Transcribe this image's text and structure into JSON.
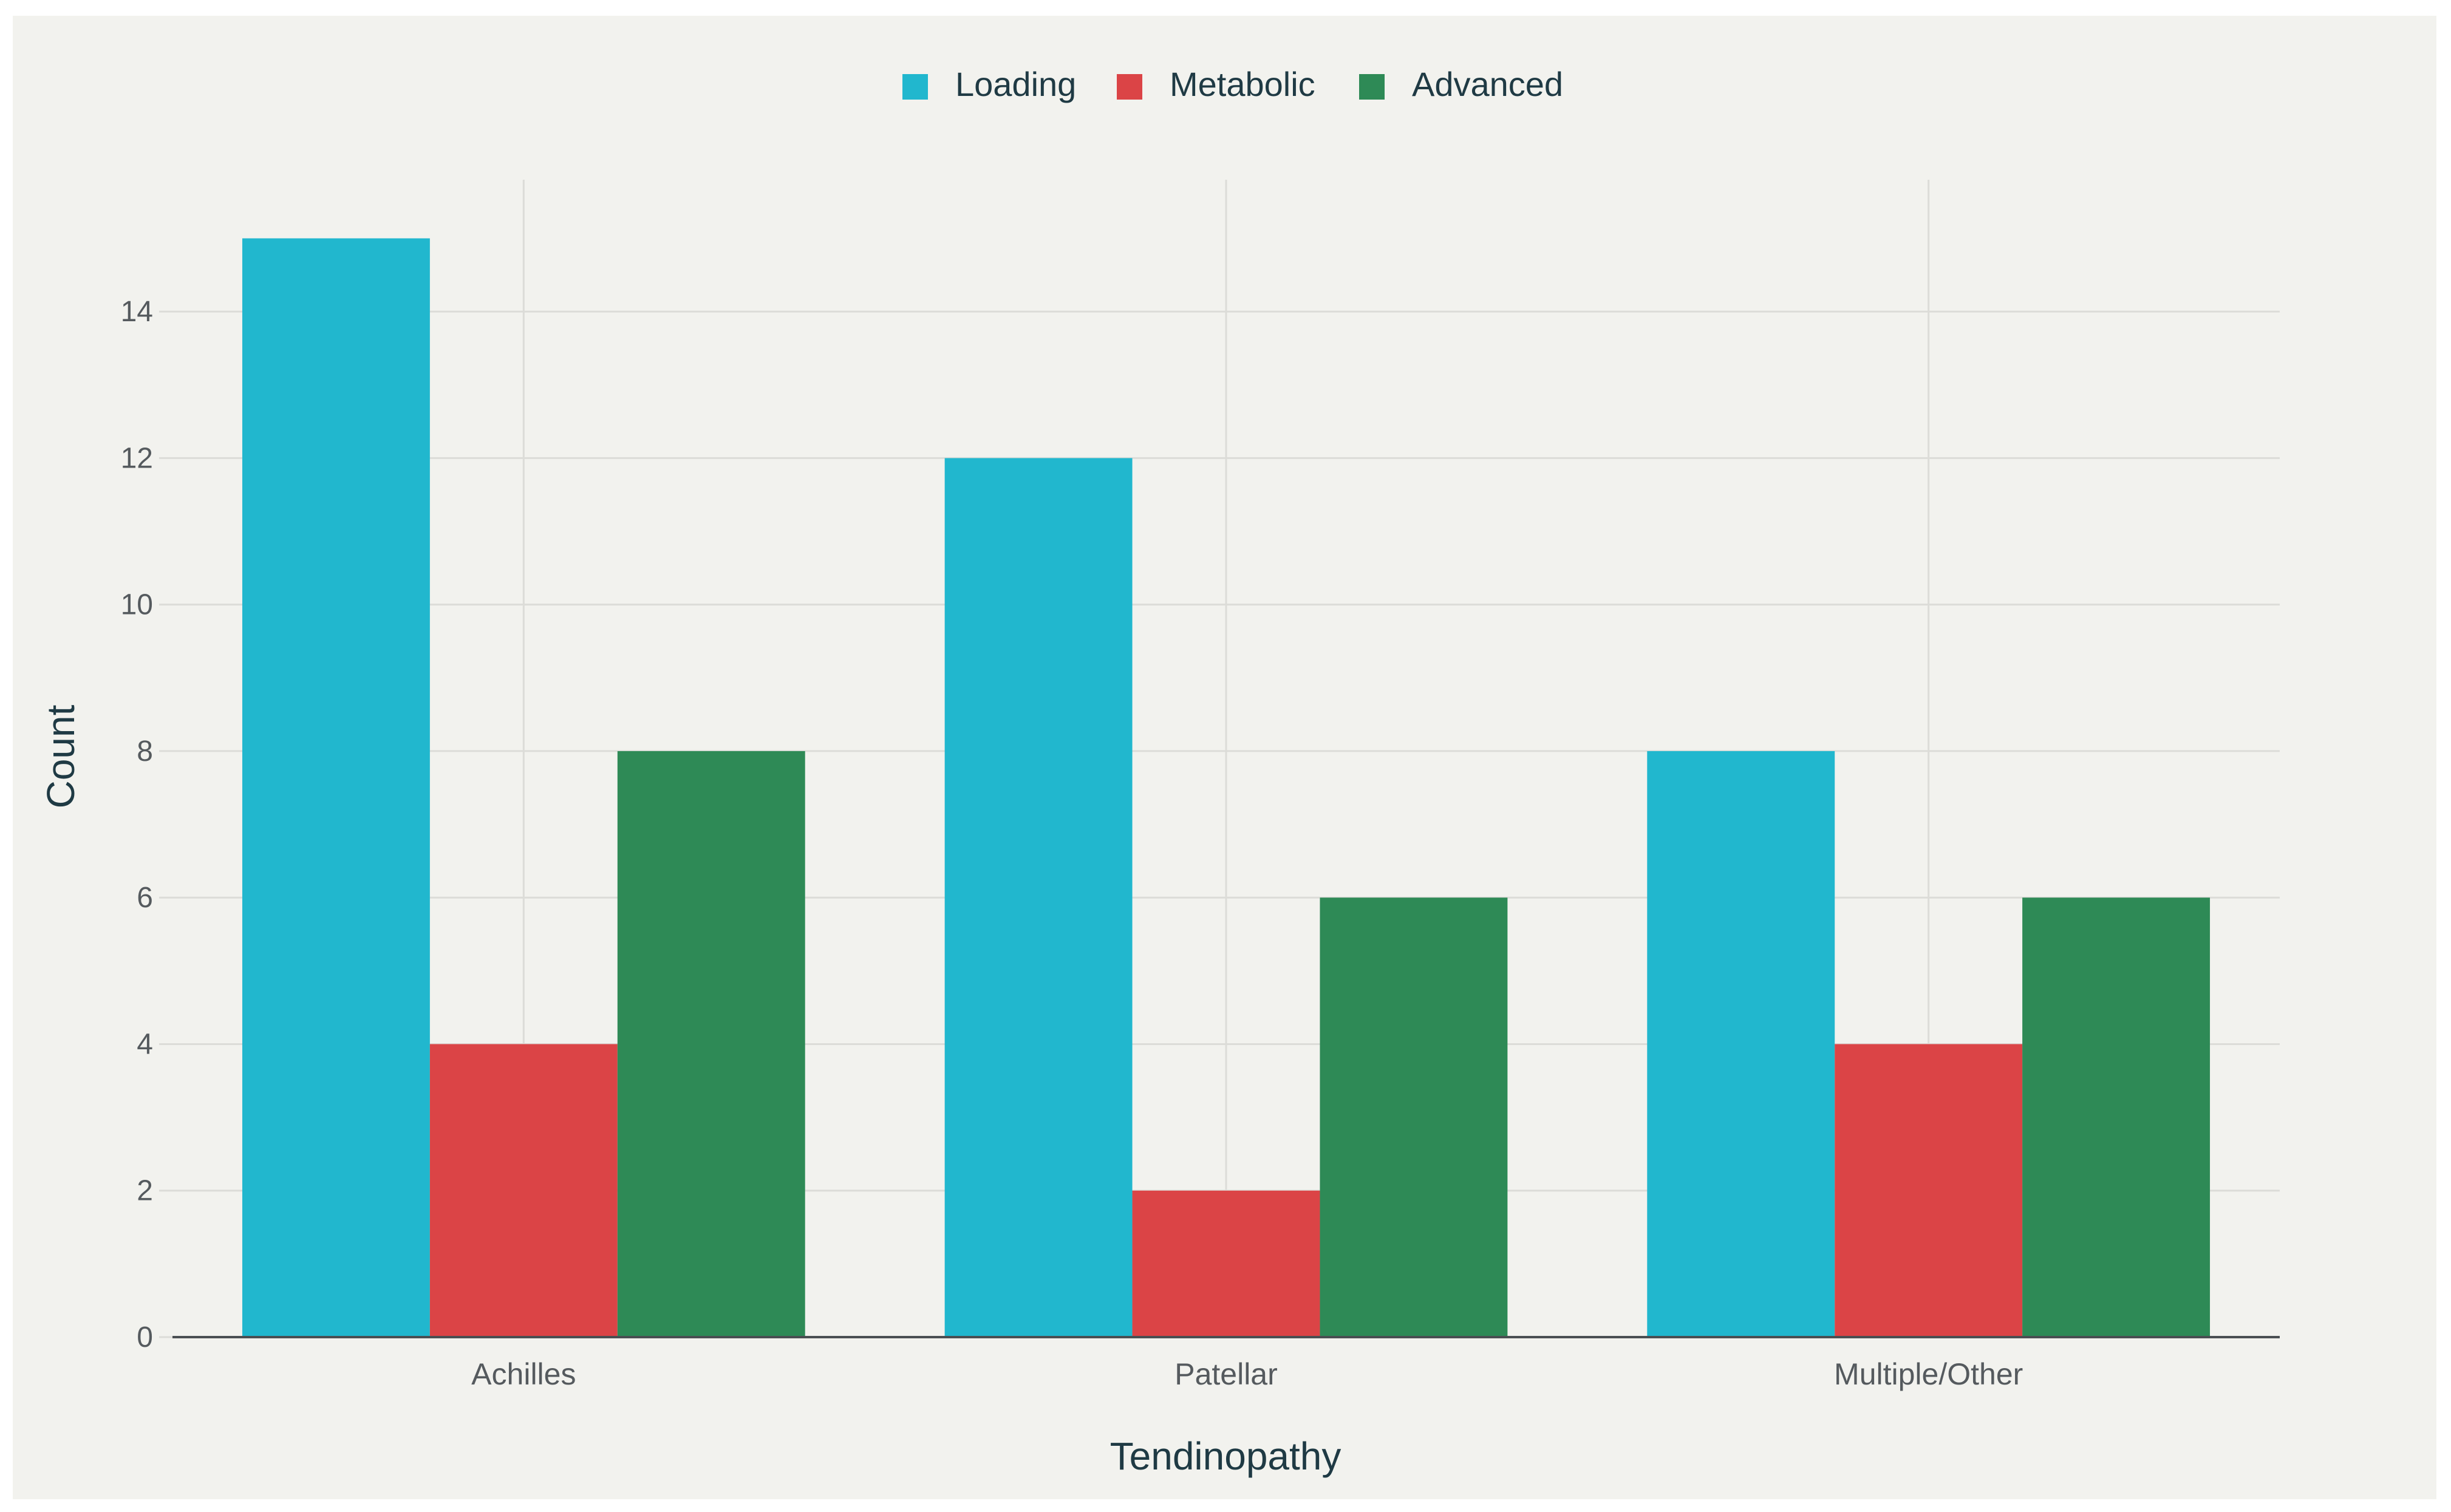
{
  "chart_data": {
    "type": "bar",
    "categories": [
      "Achilles",
      "Patellar",
      "Multiple/Other"
    ],
    "series": [
      {
        "name": "Loading",
        "color": "#21b7ce",
        "values": [
          15,
          12,
          8
        ]
      },
      {
        "name": "Metabolic",
        "color": "#db4446",
        "values": [
          4,
          2,
          4
        ]
      },
      {
        "name": "Advanced",
        "color": "#2e8a56",
        "values": [
          8,
          6,
          6
        ]
      }
    ],
    "xlabel": "Tendinopathy",
    "ylabel": "Count",
    "ylim": [
      0,
      15.8
    ],
    "yticks": [
      0,
      2,
      4,
      6,
      8,
      10,
      12,
      14
    ],
    "grid": true,
    "legend_position": "top-center"
  }
}
